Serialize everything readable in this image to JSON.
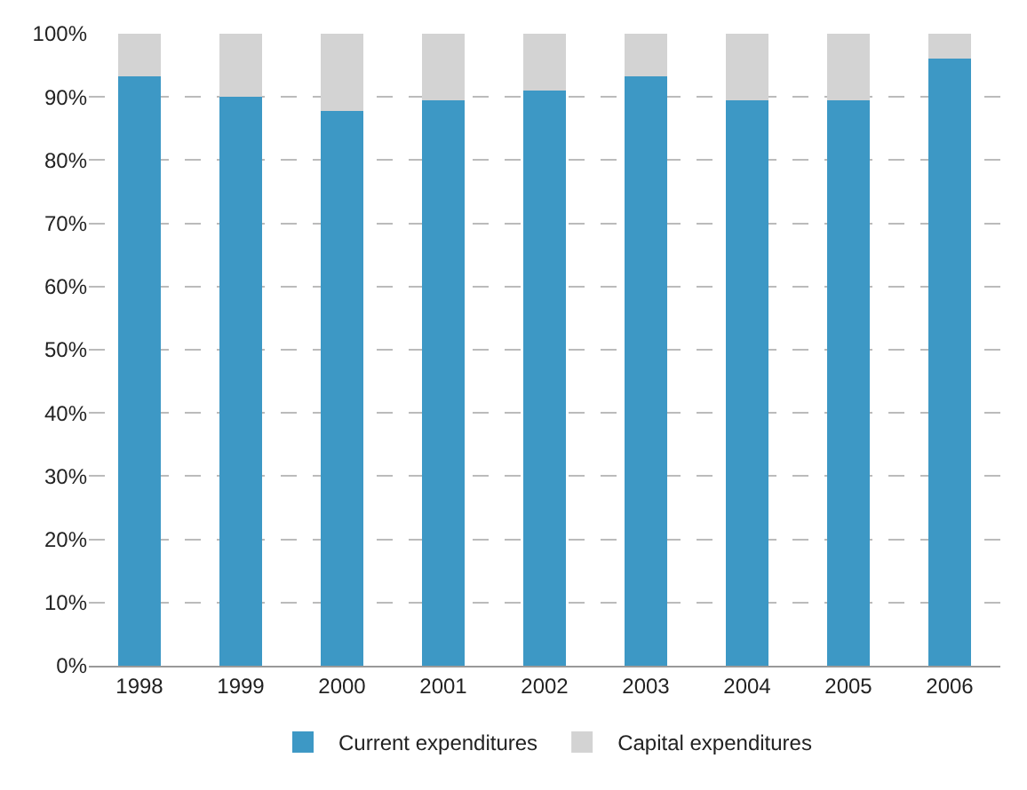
{
  "chart_data": {
    "type": "bar",
    "stacked": true,
    "categories": [
      "1998",
      "1999",
      "2000",
      "2001",
      "2002",
      "2003",
      "2004",
      "2005",
      "2006"
    ],
    "series": [
      {
        "name": "Current expenditures",
        "color": "#3d98c5",
        "values": [
          93.3,
          90,
          87.8,
          89.4,
          91,
          93.3,
          89.4,
          89.4,
          96
        ]
      },
      {
        "name": "Capital expenditures",
        "color": "#d3d3d3",
        "values": [
          6.7,
          10,
          12.2,
          10.6,
          9,
          6.7,
          10.6,
          10.6,
          4
        ]
      }
    ],
    "ylim": [
      0,
      100
    ],
    "yticks": [
      {
        "value": 0,
        "label": "0%"
      },
      {
        "value": 10,
        "label": "10%"
      },
      {
        "value": 20,
        "label": "20%"
      },
      {
        "value": 30,
        "label": "30%"
      },
      {
        "value": 40,
        "label": "40%"
      },
      {
        "value": 50,
        "label": "50%"
      },
      {
        "value": 60,
        "label": "60%"
      },
      {
        "value": 70,
        "label": "70%"
      },
      {
        "value": 80,
        "label": "80%"
      },
      {
        "value": 90,
        "label": "90%"
      },
      {
        "value": 100,
        "label": "100%"
      }
    ],
    "grid": true,
    "legend": "bottom"
  }
}
